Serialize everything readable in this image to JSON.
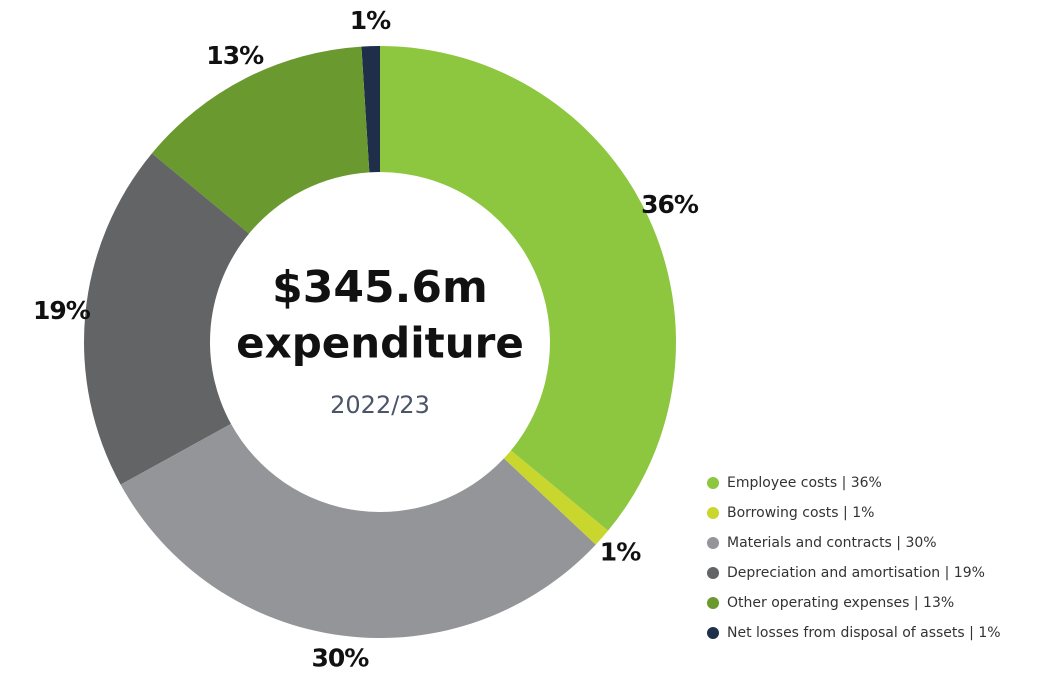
{
  "chart_data": {
    "type": "donut",
    "center_text": [
      "$345.6m",
      "expenditure"
    ],
    "subtitle": "2022/23",
    "categories": [
      "Employee costs | 36%",
      "Borrowing costs | 1%",
      "Materials and contracts | 30%",
      "Depreciation and amortisation | 19%",
      "Other operating expenses | 13%",
      "Net losses from disposal of assets | 1%"
    ],
    "values": [
      36,
      1,
      30,
      19,
      13,
      1
    ],
    "value_labels": [
      "36%",
      "1%",
      "30%",
      "19%",
      "13%",
      "1%"
    ],
    "colors": [
      "#8dc63f",
      "#c8d62e",
      "#939598",
      "#636466",
      "#6a9a2f",
      "#1f2f4a"
    ],
    "legend": "lower right"
  }
}
